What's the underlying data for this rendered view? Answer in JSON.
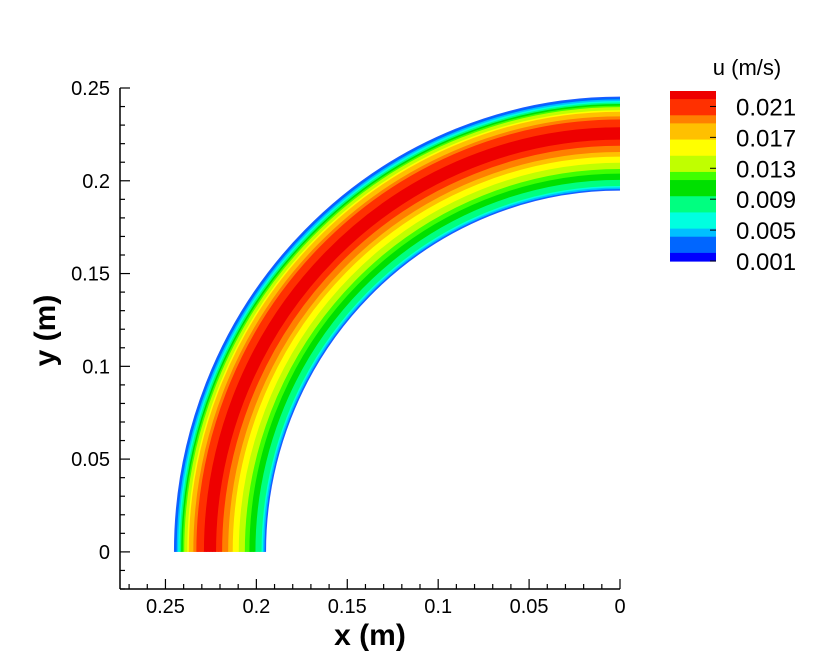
{
  "chart_data": {
    "type": "heatmap",
    "plot_kind": "filled contour",
    "xlabel": "x  (m)",
    "ylabel": "y  (m)",
    "x_reversed": true,
    "xlim": [
      0.275,
      0
    ],
    "ylim": [
      -0.02,
      0.25
    ],
    "x_ticks": [
      0.25,
      0.2,
      0.15,
      0.1,
      0.05,
      0
    ],
    "x_tick_labels": [
      "0.25",
      "0.2",
      "0.15",
      "0.1",
      "0.05",
      "0"
    ],
    "y_ticks": [
      0,
      0.05,
      0.1,
      0.15,
      0.2,
      0.25
    ],
    "y_tick_labels": [
      "0",
      "0.05",
      "0.1",
      "0.15",
      "0.2",
      "0.25"
    ],
    "grid": false,
    "domain": {
      "shape": "quarter annulus",
      "inner_radius": 0.195,
      "outer_radius": 0.245,
      "angle_range_deg": [
        0,
        90
      ]
    },
    "radial_profile": {
      "radius": [
        0.195,
        0.198,
        0.202,
        0.207,
        0.212,
        0.217,
        0.222,
        0.227,
        0.232,
        0.237,
        0.241,
        0.2435,
        0.245
      ],
      "u": [
        0.001,
        0.008,
        0.01,
        0.013,
        0.016,
        0.019,
        0.022,
        0.023,
        0.021,
        0.017,
        0.011,
        0.006,
        0.001
      ]
    },
    "colorbar": {
      "title": "u  (m/s)",
      "position": "top-right",
      "min": 0.001,
      "max": 0.023,
      "tick_values": [
        0.021,
        0.017,
        0.013,
        0.009,
        0.005,
        0.001
      ],
      "tick_labels": [
        "0.021",
        "0.017",
        "0.013",
        "0.009",
        "0.005",
        "0.001"
      ],
      "colormap": [
        "#0000ff",
        "#0066ff",
        "#00c0ff",
        "#00ffe0",
        "#00ff80",
        "#00e000",
        "#40ff00",
        "#c0ff00",
        "#ffff00",
        "#ffc000",
        "#ff8000",
        "#ff3000",
        "#ee0000"
      ]
    }
  }
}
